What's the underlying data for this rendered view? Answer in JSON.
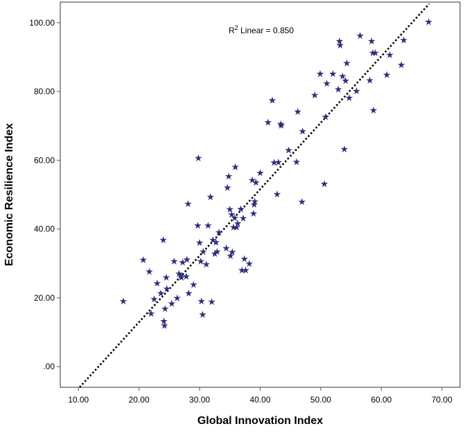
{
  "chart_data": {
    "type": "scatter",
    "xlabel": "Global Innovation Index",
    "ylabel": "Economic Resilience Index",
    "xlim": [
      7.0,
      73.0
    ],
    "ylim": [
      -6.0,
      106.0
    ],
    "xticks": [
      10,
      20,
      30,
      40,
      50,
      60,
      70
    ],
    "yticks": [
      0,
      20,
      40,
      60,
      80,
      100
    ],
    "xtick_labels": [
      "10.00",
      "20.00",
      "30.00",
      "40.00",
      "50.00",
      "60.00",
      "70.00"
    ],
    "ytick_labels": [
      ".00",
      "20.00",
      "40.00",
      "60.00",
      "80.00",
      "100.00"
    ],
    "grid": false,
    "marker": "star",
    "marker_color": "#2e2e7a",
    "fit_line": {
      "label_main": "R",
      "label_sup": "2",
      "label_rest": " Linear = 0.850",
      "style": "dotted",
      "color": "#000000",
      "x": [
        10.2,
        67.9
      ],
      "y": [
        -6.0,
        105.5
      ]
    },
    "points": [
      [
        17.4,
        19.0
      ],
      [
        20.7,
        31.0
      ],
      [
        21.7,
        27.6
      ],
      [
        22.0,
        15.4
      ],
      [
        22.5,
        19.6
      ],
      [
        23.0,
        24.2
      ],
      [
        23.6,
        21.3
      ],
      [
        24.0,
        36.8
      ],
      [
        24.1,
        13.2
      ],
      [
        24.2,
        11.9
      ],
      [
        24.3,
        16.8
      ],
      [
        24.5,
        25.9
      ],
      [
        24.6,
        22.6
      ],
      [
        25.4,
        18.3
      ],
      [
        25.8,
        30.6
      ],
      [
        26.3,
        19.9
      ],
      [
        26.6,
        27.0
      ],
      [
        26.9,
        26.4
      ],
      [
        27.0,
        25.9
      ],
      [
        27.2,
        30.3
      ],
      [
        27.8,
        26.2
      ],
      [
        27.9,
        31.1
      ],
      [
        28.1,
        47.3
      ],
      [
        28.2,
        21.3
      ],
      [
        29.0,
        23.8
      ],
      [
        29.7,
        41.0
      ],
      [
        29.8,
        60.6
      ],
      [
        30.0,
        36.0
      ],
      [
        30.2,
        30.6
      ],
      [
        30.3,
        19.0
      ],
      [
        30.5,
        15.1
      ],
      [
        30.6,
        33.4
      ],
      [
        31.1,
        29.7
      ],
      [
        31.4,
        41.0
      ],
      [
        31.8,
        49.3
      ],
      [
        32.0,
        18.8
      ],
      [
        32.2,
        36.8
      ],
      [
        32.5,
        32.8
      ],
      [
        32.7,
        36.1
      ],
      [
        32.9,
        33.4
      ],
      [
        33.2,
        39.0
      ],
      [
        34.4,
        34.4
      ],
      [
        34.6,
        52.0
      ],
      [
        34.8,
        55.3
      ],
      [
        35.0,
        45.7
      ],
      [
        35.1,
        32.2
      ],
      [
        35.3,
        44.2
      ],
      [
        35.4,
        33.3
      ],
      [
        35.6,
        40.5
      ],
      [
        35.8,
        43.2
      ],
      [
        35.9,
        58.0
      ],
      [
        36.1,
        40.5
      ],
      [
        36.3,
        41.6
      ],
      [
        36.8,
        45.8
      ],
      [
        37.0,
        28.0
      ],
      [
        37.2,
        43.1
      ],
      [
        37.4,
        31.3
      ],
      [
        37.6,
        28.0
      ],
      [
        38.2,
        29.9
      ],
      [
        38.7,
        54.2
      ],
      [
        38.9,
        44.5
      ],
      [
        39.0,
        47.1
      ],
      [
        39.1,
        48.0
      ],
      [
        39.3,
        53.5
      ],
      [
        40.0,
        56.3
      ],
      [
        41.3,
        71.0
      ],
      [
        42.0,
        77.4
      ],
      [
        42.3,
        59.3
      ],
      [
        42.8,
        50.1
      ],
      [
        43.0,
        59.4
      ],
      [
        43.4,
        70.5
      ],
      [
        43.5,
        70.1
      ],
      [
        44.7,
        62.9
      ],
      [
        46.0,
        59.5
      ],
      [
        46.2,
        74.1
      ],
      [
        46.9,
        47.9
      ],
      [
        47.0,
        68.4
      ],
      [
        49.0,
        78.9
      ],
      [
        49.9,
        85.1
      ],
      [
        50.6,
        53.1
      ],
      [
        50.8,
        72.6
      ],
      [
        51.0,
        82.3
      ],
      [
        52.0,
        85.1
      ],
      [
        52.9,
        80.6
      ],
      [
        53.1,
        94.6
      ],
      [
        53.2,
        93.4
      ],
      [
        53.6,
        84.4
      ],
      [
        53.9,
        63.2
      ],
      [
        54.1,
        83.1
      ],
      [
        54.3,
        88.2
      ],
      [
        54.7,
        78.1
      ],
      [
        55.9,
        80.1
      ],
      [
        56.5,
        96.2
      ],
      [
        58.1,
        83.2
      ],
      [
        58.4,
        94.6
      ],
      [
        58.6,
        91.2
      ],
      [
        58.7,
        74.5
      ],
      [
        59.0,
        91.2
      ],
      [
        60.9,
        84.8
      ],
      [
        61.4,
        90.6
      ],
      [
        63.3,
        87.7
      ],
      [
        63.7,
        94.9
      ],
      [
        67.8,
        100.2
      ]
    ]
  }
}
